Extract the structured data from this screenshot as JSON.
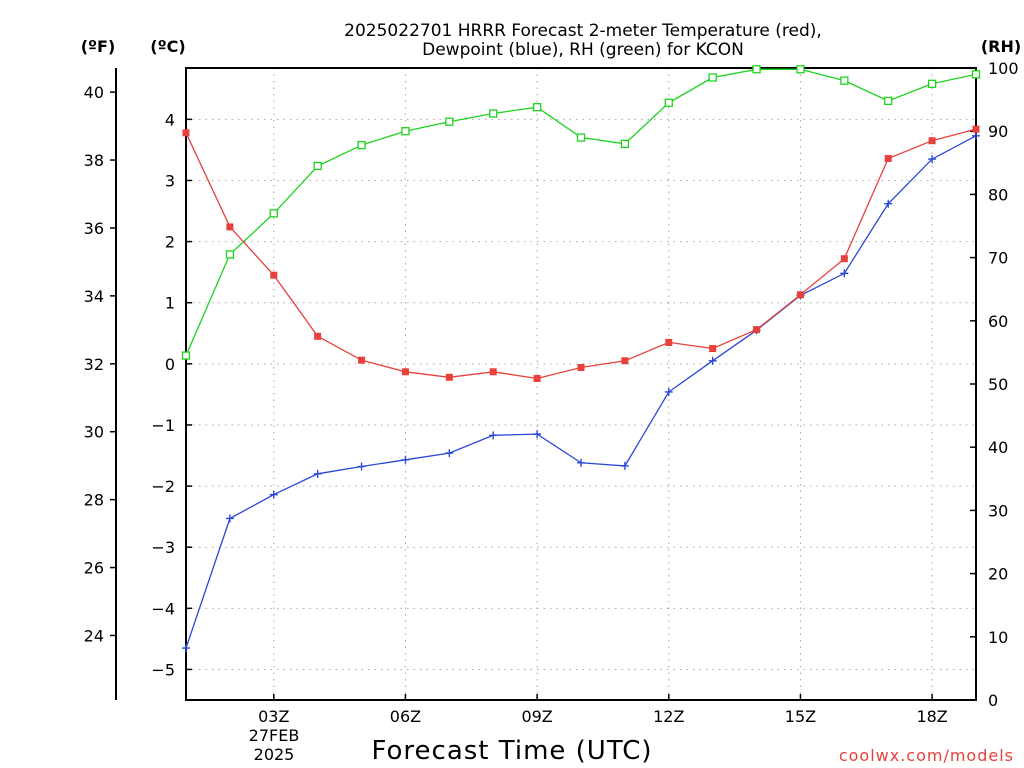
{
  "title_lines": [
    "2025022701 HRRR Forecast 2-meter Temperature (red),",
    "Dewpoint (blue), RH (green) for KCON"
  ],
  "unit_labels": {
    "fahrenheit": "(ºF)",
    "celsius": "(ºC)",
    "rh": "(RH)"
  },
  "xlabel": "Forecast Time (UTC)",
  "x_sublabels": [
    "27FEB",
    "2025"
  ],
  "credit": "coolwx.com/models",
  "chart_data": {
    "type": "line",
    "title": "2025022701 HRRR Forecast 2-meter Temperature (red), Dewpoint (blue), RH (green) for KCON",
    "xlabel": "Forecast Time (UTC)",
    "x": [
      1,
      2,
      3,
      4,
      5,
      6,
      7,
      8,
      9,
      10,
      11,
      12,
      13,
      14,
      15,
      16,
      17,
      18,
      19
    ],
    "xlim": [
      1,
      19
    ],
    "x_ticks": [
      3,
      6,
      9,
      12,
      15,
      18
    ],
    "x_tick_labels": [
      "03Z",
      "06Z",
      "09Z",
      "12Z",
      "15Z",
      "18Z"
    ],
    "grid": true,
    "series": [
      {
        "name": "Temperature (red)",
        "axis": "celsius",
        "color": "#e8413c",
        "marker": "filled-square",
        "values": [
          3.78,
          2.24,
          1.45,
          0.45,
          0.06,
          -0.13,
          -0.22,
          -0.13,
          -0.24,
          -0.06,
          0.05,
          0.35,
          0.25,
          0.56,
          1.13,
          1.72,
          3.36,
          3.65,
          3.84
        ]
      },
      {
        "name": "Dewpoint (blue)",
        "axis": "celsius",
        "color": "#2a48d6",
        "marker": "plus",
        "values": [
          -4.65,
          -2.53,
          -2.14,
          -1.8,
          -1.68,
          -1.57,
          -1.46,
          -1.17,
          -1.15,
          -1.62,
          -1.67,
          -0.46,
          0.05,
          0.55,
          1.12,
          1.48,
          2.62,
          3.35,
          3.73
        ]
      },
      {
        "name": "RH (green)",
        "axis": "rh",
        "color": "#1ed31e",
        "marker": "open-square",
        "values": [
          54.5,
          70.5,
          77.0,
          84.5,
          87.8,
          90.0,
          91.5,
          92.8,
          93.8,
          89.0,
          88.0,
          94.5,
          98.5,
          99.8,
          99.8,
          98.0,
          94.8,
          97.5,
          99.0
        ]
      }
    ],
    "axes": {
      "celsius": {
        "ylim": [
          -5.5,
          4.84
        ],
        "ticks": [
          -5,
          -4,
          -3,
          -2,
          -1,
          0,
          1,
          2,
          3,
          4
        ]
      },
      "fahrenheit": {
        "ylim": [
          22.1,
          40.71
        ],
        "ticks": [
          24,
          26,
          28,
          30,
          32,
          34,
          36,
          38,
          40
        ]
      },
      "rh": {
        "ylim": [
          0,
          100
        ],
        "ticks": [
          0,
          10,
          20,
          30,
          40,
          50,
          60,
          70,
          80,
          90,
          100
        ]
      }
    }
  }
}
